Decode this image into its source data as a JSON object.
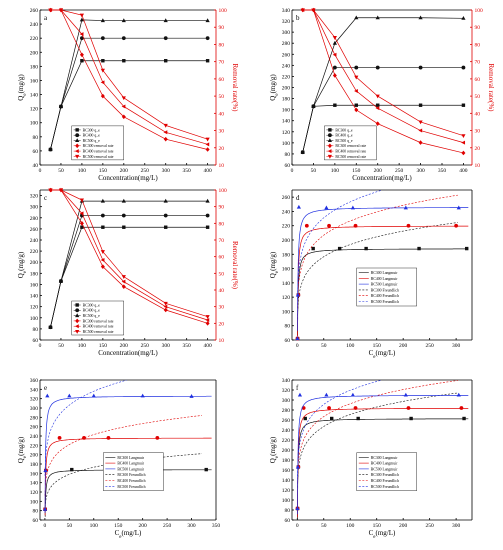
{
  "chart_data": [
    {
      "panel": "a",
      "type": "line",
      "xlabel": "Concentration(mg/L)",
      "ylabel": "Q_e(mg/g)",
      "y2label": "Removal rate(%)",
      "xlim": [
        0,
        420
      ],
      "ylim": [
        40,
        260
      ],
      "y2lim": [
        10,
        100
      ],
      "xticks": [
        0,
        50,
        100,
        150,
        200,
        250,
        300,
        350,
        400
      ],
      "yticks": [
        40,
        60,
        80,
        100,
        120,
        140,
        160,
        180,
        200,
        220,
        240,
        260
      ],
      "y2ticks": [
        10,
        20,
        30,
        40,
        50,
        60,
        70,
        80,
        90,
        100
      ],
      "legend": [
        "BC300 q_e",
        "BC400 q_e",
        "BC500 q_e",
        "BC300 removal rate",
        "BC400 removal rate",
        "BC500 removal rate"
      ],
      "series": [
        {
          "name": "BC300 q_e",
          "axis": "left",
          "x": [
            25,
            50,
            100,
            150,
            200,
            300,
            400
          ],
          "y": [
            62,
            123,
            188,
            188,
            188,
            188,
            188
          ]
        },
        {
          "name": "BC400 q_e",
          "axis": "left",
          "x": [
            25,
            50,
            100,
            150,
            200,
            300,
            400
          ],
          "y": [
            62,
            123,
            220,
            220,
            220,
            220,
            220
          ]
        },
        {
          "name": "BC500 q_e",
          "axis": "left",
          "x": [
            25,
            50,
            100,
            150,
            200,
            300,
            400
          ],
          "y": [
            62,
            123,
            246,
            245,
            245,
            245,
            245
          ]
        },
        {
          "name": "BC300 removal rate",
          "axis": "right",
          "x": [
            25,
            50,
            100,
            150,
            200,
            300,
            400
          ],
          "y": [
            100,
            100,
            74,
            50,
            38,
            25,
            19
          ]
        },
        {
          "name": "BC400 removal rate",
          "axis": "right",
          "x": [
            25,
            50,
            100,
            150,
            200,
            300,
            400
          ],
          "y": [
            100,
            100,
            86,
            58,
            44,
            29,
            22
          ]
        },
        {
          "name": "BC500 removal rate",
          "axis": "right",
          "x": [
            25,
            50,
            100,
            150,
            200,
            300,
            400
          ],
          "y": [
            100,
            100,
            97,
            65,
            49,
            33,
            25
          ]
        }
      ]
    },
    {
      "panel": "b",
      "type": "line",
      "xlabel": "Concentration(mg/L)",
      "ylabel": "Q_e(mg/g)",
      "y2label": "Removal rate(%)",
      "xlim": [
        0,
        420
      ],
      "ylim": [
        60,
        340
      ],
      "y2lim": [
        10,
        100
      ],
      "xticks": [
        0,
        50,
        100,
        150,
        200,
        250,
        300,
        350,
        400
      ],
      "yticks": [
        60,
        80,
        100,
        120,
        140,
        160,
        180,
        200,
        220,
        240,
        260,
        280,
        300,
        320,
        340
      ],
      "y2ticks": [
        10,
        20,
        30,
        40,
        50,
        60,
        70,
        80,
        90,
        100
      ],
      "legend": [
        "BC300 q_e",
        "BC400 q_e",
        "BC500 q_e",
        "BC300 removal rate",
        "BC400 removal rate",
        "BC500 removal rate"
      ],
      "series": [
        {
          "name": "BC300 q_e",
          "axis": "left",
          "x": [
            25,
            50,
            100,
            150,
            200,
            300,
            400
          ],
          "y": [
            83,
            166,
            168,
            168,
            168,
            168,
            168
          ]
        },
        {
          "name": "BC400 q_e",
          "axis": "left",
          "x": [
            25,
            50,
            100,
            150,
            200,
            300,
            400
          ],
          "y": [
            83,
            166,
            236,
            236,
            236,
            236,
            236
          ]
        },
        {
          "name": "BC500 q_e",
          "axis": "left",
          "x": [
            25,
            50,
            100,
            150,
            200,
            300,
            400
          ],
          "y": [
            83,
            166,
            280,
            326,
            326,
            326,
            325
          ]
        },
        {
          "name": "BC300 removal rate",
          "axis": "right",
          "x": [
            25,
            50,
            100,
            150,
            200,
            300,
            400
          ],
          "y": [
            100,
            100,
            62,
            42,
            34,
            23,
            17
          ]
        },
        {
          "name": "BC400 removal rate",
          "axis": "right",
          "x": [
            25,
            50,
            100,
            150,
            200,
            300,
            400
          ],
          "y": [
            100,
            100,
            74,
            53,
            43,
            30,
            23
          ]
        },
        {
          "name": "BC500 removal rate",
          "axis": "right",
          "x": [
            25,
            50,
            100,
            150,
            200,
            300,
            400
          ],
          "y": [
            100,
            100,
            84,
            61,
            50,
            35,
            27
          ]
        }
      ]
    },
    {
      "panel": "c",
      "type": "line",
      "xlabel": "Concentration(mg/L)",
      "ylabel": "Q_e(mg/g)",
      "y2label": "Removal rate(%)",
      "xlim": [
        0,
        420
      ],
      "ylim": [
        60,
        330
      ],
      "y2lim": [
        10,
        100
      ],
      "xticks": [
        0,
        50,
        100,
        150,
        200,
        250,
        300,
        350,
        400
      ],
      "yticks": [
        60,
        80,
        100,
        120,
        140,
        160,
        180,
        200,
        220,
        240,
        260,
        280,
        300,
        320
      ],
      "y2ticks": [
        10,
        20,
        30,
        40,
        50,
        60,
        70,
        80,
        90,
        100
      ],
      "legend": [
        "BC300 q_e",
        "BC400 q_e",
        "BC500 q_e",
        "BC300 removal rate",
        "BC400 removal rate",
        "BC500 removal rate"
      ],
      "series": [
        {
          "name": "BC300 q_e",
          "axis": "left",
          "x": [
            25,
            50,
            100,
            150,
            200,
            300,
            400
          ],
          "y": [
            83,
            166,
            263,
            263,
            263,
            263,
            263
          ]
        },
        {
          "name": "BC400 q_e",
          "axis": "left",
          "x": [
            25,
            50,
            100,
            150,
            200,
            300,
            400
          ],
          "y": [
            83,
            166,
            284,
            284,
            284,
            284,
            284
          ]
        },
        {
          "name": "BC500 q_e",
          "axis": "left",
          "x": [
            25,
            50,
            100,
            150,
            200,
            300,
            400
          ],
          "y": [
            83,
            166,
            310,
            310,
            310,
            310,
            310
          ]
        },
        {
          "name": "BC300 removal rate",
          "axis": "right",
          "x": [
            25,
            50,
            100,
            150,
            200,
            300,
            400
          ],
          "y": [
            100,
            100,
            80,
            54,
            42,
            28,
            20
          ]
        },
        {
          "name": "BC400 removal rate",
          "axis": "right",
          "x": [
            25,
            50,
            100,
            150,
            200,
            300,
            400
          ],
          "y": [
            100,
            100,
            86,
            58,
            45,
            30,
            22
          ]
        },
        {
          "name": "BC500 removal rate",
          "axis": "right",
          "x": [
            25,
            50,
            100,
            150,
            200,
            300,
            400
          ],
          "y": [
            100,
            100,
            94,
            63,
            48,
            32,
            24
          ]
        }
      ]
    },
    {
      "panel": "d",
      "type": "scatter",
      "xlabel": "C_e(mg/L)",
      "ylabel": "Q_e(mg/g)",
      "xlim": [
        -10,
        330
      ],
      "ylim": [
        60,
        270
      ],
      "xticks": [
        0,
        50,
        100,
        150,
        200,
        250,
        300
      ],
      "yticks": [
        60,
        80,
        100,
        120,
        140,
        160,
        180,
        200,
        220,
        240,
        260
      ],
      "legend": [
        "BC300 Langmuir",
        "BC400 Langmuir",
        "BC500 Langmuir",
        "BC300 Freundlich",
        "BC400 Freundlich",
        "BC500 Freundlich"
      ],
      "series": [
        {
          "name": "BC300",
          "x": [
            0.5,
            2,
            30,
            80,
            130,
            230,
            320
          ],
          "y": [
            62,
            123,
            188,
            188,
            188,
            188,
            188
          ]
        },
        {
          "name": "BC400",
          "x": [
            0.5,
            2,
            18,
            60,
            110,
            210,
            300
          ],
          "y": [
            62,
            123,
            220,
            220,
            220,
            220,
            220
          ]
        },
        {
          "name": "BC500",
          "x": [
            0.3,
            1.2,
            3,
            55,
            105,
            205,
            305
          ],
          "y": [
            62,
            123,
            246,
            245,
            245,
            245,
            245
          ]
        }
      ]
    },
    {
      "panel": "e",
      "type": "scatter",
      "xlabel": "C_e(mg/L)",
      "ylabel": "Q_e(mg/g)",
      "xlim": [
        -10,
        350
      ],
      "ylim": [
        60,
        360
      ],
      "xticks": [
        0,
        50,
        100,
        150,
        200,
        250,
        300,
        350
      ],
      "yticks": [
        60,
        80,
        100,
        120,
        140,
        160,
        180,
        200,
        220,
        240,
        260,
        280,
        300,
        320,
        340,
        360
      ],
      "legend": [
        "BC300 Langmuir",
        "BC400 Langmuir",
        "BC500 Langmuir",
        "BC300 Freundlich",
        "BC400 Freundlich",
        "BC500 Freundlich"
      ],
      "series": [
        {
          "name": "BC300",
          "x": [
            0.5,
            2,
            55,
            130,
            230,
            330
          ],
          "y": [
            83,
            166,
            168,
            168,
            168,
            168
          ]
        },
        {
          "name": "BC400",
          "x": [
            0.5,
            2,
            30,
            80,
            130,
            230
          ],
          "y": [
            83,
            166,
            236,
            236,
            236,
            236
          ]
        },
        {
          "name": "BC500",
          "x": [
            0.3,
            1.2,
            5,
            50,
            100,
            200,
            300
          ],
          "y": [
            83,
            166,
            326,
            326,
            326,
            326,
            325
          ]
        }
      ]
    },
    {
      "panel": "f",
      "type": "scatter",
      "xlabel": "C_e(mg/L)",
      "ylabel": "Q_e(mg/g)",
      "xlim": [
        -10,
        330
      ],
      "ylim": [
        60,
        340
      ],
      "xticks": [
        0,
        50,
        100,
        150,
        200,
        250,
        300
      ],
      "yticks": [
        60,
        80,
        100,
        120,
        140,
        160,
        180,
        200,
        220,
        240,
        260,
        280,
        300,
        320,
        340
      ],
      "legend": [
        "BC300 Langmuir",
        "BC400 Langmuir",
        "BC500 Langmuir",
        "BC300 Freundlich",
        "BC400 Freundlich",
        "BC500 Freundlich"
      ],
      "series": [
        {
          "name": "BC300",
          "x": [
            0.5,
            2,
            15,
            65,
            115,
            215,
            315
          ],
          "y": [
            83,
            166,
            263,
            263,
            263,
            263,
            263
          ]
        },
        {
          "name": "BC400",
          "x": [
            0.5,
            2,
            12,
            60,
            110,
            210,
            310
          ],
          "y": [
            83,
            166,
            284,
            284,
            284,
            284,
            284
          ]
        },
        {
          "name": "BC500",
          "x": [
            0.3,
            1.2,
            5,
            55,
            105,
            205,
            305
          ],
          "y": [
            83,
            166,
            310,
            310,
            310,
            310,
            310
          ]
        }
      ]
    }
  ]
}
